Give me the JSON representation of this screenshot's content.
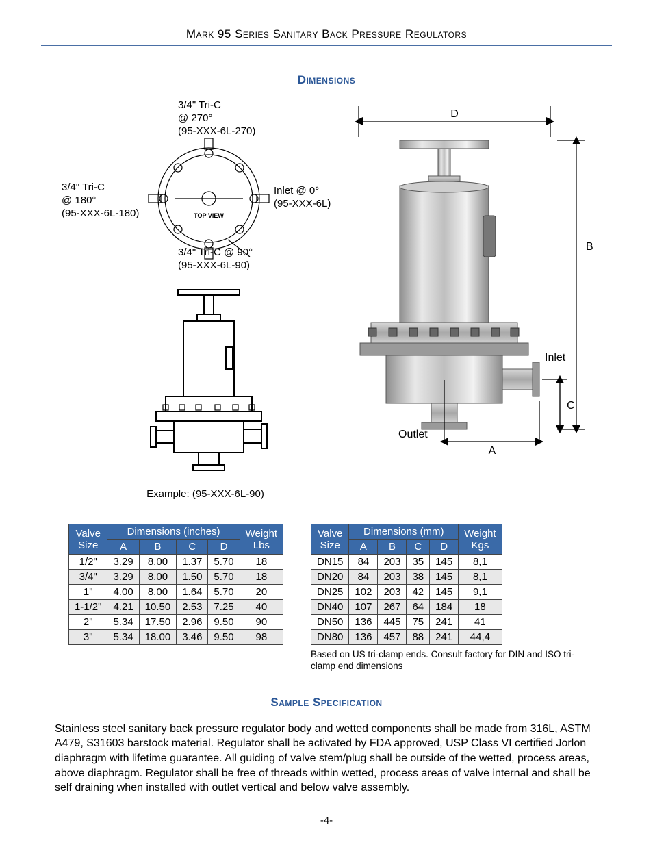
{
  "header": {
    "title": "Mark 95 Series Sanitary Back Pressure Regulators"
  },
  "sections": {
    "dimensions_title": "Dimensions",
    "sample_title": "Sample Specification"
  },
  "diagram_left": {
    "top270": {
      "l1": "3/4\" Tri-C",
      "l2": "@ 270°",
      "l3": "(95-XXX-6L-270)"
    },
    "left180": {
      "l1": "3/4\" Tri-C",
      "l2": "@ 180°",
      "l3": "(95-XXX-6L-180)"
    },
    "right0": {
      "l1": "Inlet @ 0°",
      "l2": "(95-XXX-6L)"
    },
    "bot90": {
      "l1": "3/4\" Tri-C @ 90°",
      "l2": "(95-XXX-6L-90)"
    },
    "topview": "TOP VIEW",
    "example": "Example: (95-XXX-6L-90)"
  },
  "diagram_right": {
    "D": "D",
    "B": "B",
    "C": "C",
    "A": "A",
    "inlet": "Inlet",
    "outlet": "Outlet"
  },
  "table_inches": {
    "title": "Dimensions (inches)",
    "size_header": "Valve\nSize",
    "weight_header": "Weight\nLbs",
    "cols": [
      "A",
      "B",
      "C",
      "D"
    ],
    "rows": [
      {
        "size": "1/2\"",
        "A": "3.29",
        "B": "8.00",
        "C": "1.37",
        "D": "5.70",
        "W": "18"
      },
      {
        "size": "3/4\"",
        "A": "3.29",
        "B": "8.00",
        "C": "1.50",
        "D": "5.70",
        "W": "18"
      },
      {
        "size": "1\"",
        "A": "4.00",
        "B": "8.00",
        "C": "1.64",
        "D": "5.70",
        "W": "20"
      },
      {
        "size": "1-1/2\"",
        "A": "4.21",
        "B": "10.50",
        "C": "2.53",
        "D": "7.25",
        "W": "40"
      },
      {
        "size": "2\"",
        "A": "5.34",
        "B": "17.50",
        "C": "2.96",
        "D": "9.50",
        "W": "90"
      },
      {
        "size": "3\"",
        "A": "5.34",
        "B": "18.00",
        "C": "3.46",
        "D": "9.50",
        "W": "98"
      }
    ]
  },
  "table_mm": {
    "title": "Dimensions (mm)",
    "size_header": "Valve\nSize",
    "weight_header": "Weight\nKgs",
    "cols": [
      "A",
      "B",
      "C",
      "D"
    ],
    "rows": [
      {
        "size": "DN15",
        "A": "84",
        "B": "203",
        "C": "35",
        "D": "145",
        "W": "8,1"
      },
      {
        "size": "DN20",
        "A": "84",
        "B": "203",
        "C": "38",
        "D": "145",
        "W": "8,1"
      },
      {
        "size": "DN25",
        "A": "102",
        "B": "203",
        "C": "42",
        "D": "145",
        "W": "9,1"
      },
      {
        "size": "DN40",
        "A": "107",
        "B": "267",
        "C": "64",
        "D": "184",
        "W": "18"
      },
      {
        "size": "DN50",
        "A": "136",
        "B": "445",
        "C": "75",
        "D": "241",
        "W": "41"
      },
      {
        "size": "DN80",
        "A": "136",
        "B": "457",
        "C": "88",
        "D": "241",
        "W": "44,4"
      }
    ],
    "note": "Based on US tri-clamp ends. Consult factory for DIN and ISO tri-clamp end dimensions"
  },
  "spec_body": "Stainless steel sanitary back pressure regulator body and wetted components shall be made from 316L, ASTM A479, S31603 barstock material. Regulator shall be activated by FDA approved, USP Class VI certified Jorlon diaphragm with lifetime guarantee. All guiding of valve stem/plug shall be outside of the wetted, process areas, above diaphragm. Regulator shall be free of threads within wetted, process areas of valve internal and shall be self draining when installed with outlet vertical and below valve assembly.",
  "page_number": "-4-",
  "colors": {
    "section_title": "#2b5797",
    "header_rule": "#4a6fa5",
    "table_header_bg": "#3a6aa8",
    "table_header_fg": "#ffffff",
    "row_alt_bg": "#e8e8e8"
  }
}
